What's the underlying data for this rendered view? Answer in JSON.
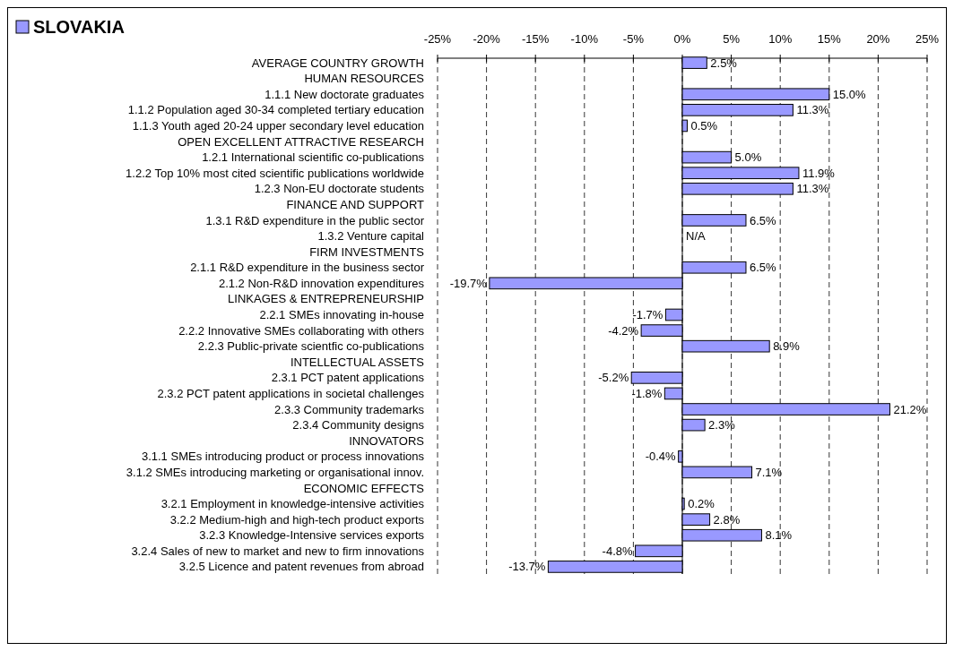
{
  "chart_data": {
    "type": "bar",
    "orientation": "horizontal",
    "categories": [
      "AVERAGE COUNTRY GROWTH",
      "HUMAN RESOURCES",
      "1.1.1 New doctorate graduates",
      "1.1.2 Population aged 30-34 completed tertiary education",
      "1.1.3 Youth aged 20-24 upper secondary level education",
      "OPEN EXCELLENT ATTRACTIVE RESEARCH",
      "1.2.1 International scientific co-publications",
      "1.2.2 Top 10% most cited scientific publications worldwide",
      "1.2.3 Non-EU doctorate students",
      "FINANCE AND SUPPORT",
      "1.3.1 R&D expenditure in the public sector",
      "1.3.2 Venture capital",
      "FIRM INVESTMENTS",
      "2.1.1 R&D expenditure in the business sector",
      "2.1.2 Non-R&D innovation expenditures",
      "LINKAGES & ENTREPRENEURSHIP",
      "2.2.1 SMEs innovating in-house",
      "2.2.2 Innovative SMEs collaborating with others",
      "2.2.3 Public-private scientfic co-publications",
      "INTELLECTUAL ASSETS",
      "2.3.1 PCT patent applications",
      "2.3.2 PCT patent applications in societal challenges",
      "2.3.3 Community trademarks",
      "2.3.4 Community designs",
      "INNOVATORS",
      "3.1.1 SMEs introducing product or process innovations",
      "3.1.2 SMEs introducing marketing or organisational innov.",
      "ECONOMIC EFFECTS",
      "3.2.1 Employment in knowledge-intensive activities",
      "3.2.2 Medium-high and high-tech product exports",
      "3.2.3 Knowledge-Intensive services exports",
      "3.2.4 Sales of new to market and new to firm innovations",
      "3.2.5 Licence and patent revenues from abroad"
    ],
    "series": [
      {
        "name": "SLOVAKIA",
        "color": "#9999ff",
        "values": [
          2.5,
          null,
          15.0,
          11.3,
          0.5,
          null,
          5.0,
          11.9,
          11.3,
          null,
          6.5,
          null,
          null,
          6.5,
          -19.7,
          null,
          -1.7,
          -4.2,
          8.9,
          null,
          -5.2,
          -1.8,
          21.2,
          2.3,
          null,
          -0.4,
          7.1,
          null,
          0.2,
          2.8,
          8.1,
          -4.8,
          -13.7
        ],
        "value_labels": [
          "2.5%",
          null,
          "15.0%",
          "11.3%",
          "0.5%",
          null,
          "5.0%",
          "11.9%",
          "11.3%",
          null,
          "6.5%",
          "N/A",
          null,
          "6.5%",
          "-19.7%",
          null,
          "-1.7%",
          "-4.2%",
          "8.9%",
          null,
          "-5.2%",
          "-1.8%",
          "21.2%",
          "2.3%",
          null,
          "-0.4%",
          "7.1%",
          null,
          "0.2%",
          "2.8%",
          "8.1%",
          "-4.8%",
          "-13.7%"
        ]
      }
    ],
    "xlim": [
      -25,
      25
    ],
    "xticks": [
      {
        "value": -25,
        "label": "-25%"
      },
      {
        "value": -20,
        "label": "-20%"
      },
      {
        "value": -15,
        "label": "-15%"
      },
      {
        "value": -10,
        "label": "-10%"
      },
      {
        "value": -5,
        "label": "-5%"
      },
      {
        "value": 0,
        "label": "0%"
      },
      {
        "value": 5,
        "label": "5%"
      },
      {
        "value": 10,
        "label": "10%"
      },
      {
        "value": 15,
        "label": "15%"
      },
      {
        "value": 20,
        "label": "20%"
      },
      {
        "value": 25,
        "label": "25%"
      }
    ],
    "grid": "x",
    "legend": "top left"
  }
}
